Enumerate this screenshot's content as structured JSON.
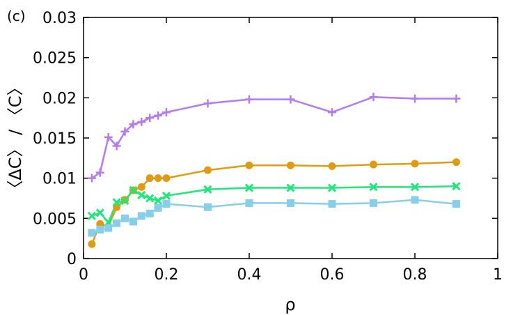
{
  "chart_data": {
    "type": "line",
    "panel_label": "(c)",
    "title": "",
    "xlabel": "ρ",
    "ylabel": "〈ΔC〉 / 〈C〉",
    "xlim": [
      0,
      1
    ],
    "ylim": [
      0,
      0.03
    ],
    "x_ticks": [
      0,
      0.2,
      0.4,
      0.6,
      0.8,
      1
    ],
    "x_tick_labels": [
      "0",
      "0.2",
      "0.4",
      "0.6",
      "0.8",
      "1"
    ],
    "y_ticks": [
      0,
      0.005,
      0.01,
      0.015,
      0.02,
      0.025,
      0.03
    ],
    "y_tick_labels": [
      "0",
      "0.005",
      "0.01",
      "0.015",
      "0.02",
      "0.025",
      "0.03"
    ],
    "grid": false,
    "legend": "none",
    "series": [
      {
        "marker": "plus",
        "color": "#b579f0",
        "x": [
          0.02,
          0.04,
          0.06,
          0.08,
          0.1,
          0.12,
          0.14,
          0.16,
          0.18,
          0.2,
          0.3,
          0.4,
          0.5,
          0.6,
          0.7,
          0.8,
          0.9
        ],
        "y": [
          0.01,
          0.0107,
          0.0151,
          0.014,
          0.0158,
          0.0167,
          0.017,
          0.0175,
          0.0178,
          0.0182,
          0.0193,
          0.0198,
          0.0198,
          0.0182,
          0.0201,
          0.0199,
          0.0199
        ]
      },
      {
        "marker": "circle",
        "color": "#e09b10",
        "x": [
          0.02,
          0.04,
          0.06,
          0.08,
          0.1,
          0.12,
          0.14,
          0.16,
          0.18,
          0.2,
          0.3,
          0.4,
          0.5,
          0.6,
          0.7,
          0.8,
          0.9
        ],
        "y": [
          0.0018,
          0.0043,
          0.004,
          0.0064,
          0.0073,
          0.0085,
          0.0089,
          0.01,
          0.01,
          0.01,
          0.011,
          0.0116,
          0.0116,
          0.0115,
          0.0117,
          0.0118,
          0.012
        ]
      },
      {
        "marker": "cross",
        "color": "#1ee87a",
        "x": [
          0.02,
          0.04,
          0.06,
          0.08,
          0.1,
          0.12,
          0.14,
          0.16,
          0.18,
          0.2,
          0.3,
          0.4,
          0.5,
          0.6,
          0.7,
          0.8,
          0.9
        ],
        "y": [
          0.0053,
          0.0057,
          0.0045,
          0.007,
          0.0072,
          0.0085,
          0.0079,
          0.0075,
          0.0072,
          0.0078,
          0.0086,
          0.0088,
          0.0088,
          0.0088,
          0.0089,
          0.0089,
          0.009
        ]
      },
      {
        "marker": "square",
        "color": "#87ceeb",
        "x": [
          0.02,
          0.04,
          0.06,
          0.08,
          0.1,
          0.12,
          0.14,
          0.16,
          0.18,
          0.2,
          0.3,
          0.4,
          0.5,
          0.6,
          0.7,
          0.8,
          0.9
        ],
        "y": [
          0.0032,
          0.0036,
          0.0038,
          0.0044,
          0.005,
          0.0046,
          0.0053,
          0.0056,
          0.0063,
          0.0068,
          0.0064,
          0.0069,
          0.0069,
          0.0068,
          0.0069,
          0.0073,
          0.0068
        ]
      }
    ]
  }
}
